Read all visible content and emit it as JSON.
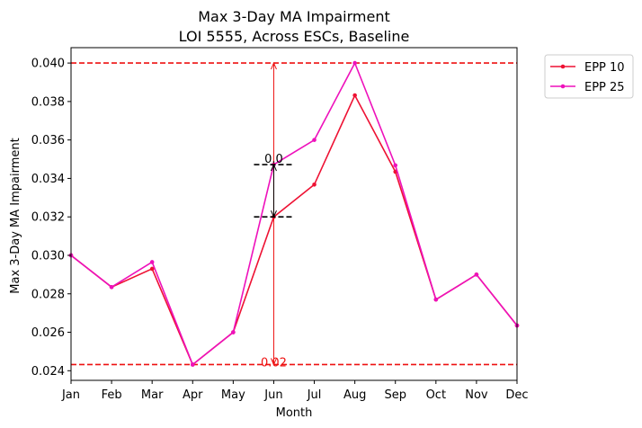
{
  "chart_data": {
    "type": "line",
    "title_line1": "Max 3-Day MA Impairment",
    "title_line2": "LOI 5555, Across ESCs, Baseline",
    "xlabel": "Month",
    "ylabel": "Max 3-Day MA Impairment",
    "categories": [
      "Jan",
      "Feb",
      "Mar",
      "Apr",
      "May",
      "Jun",
      "Jul",
      "Aug",
      "Sep",
      "Oct",
      "Nov",
      "Dec"
    ],
    "ylim": [
      0.0235,
      0.0408
    ],
    "yticks": [
      0.024,
      0.026,
      0.028,
      0.03,
      0.032,
      0.034,
      0.036,
      0.038,
      0.04
    ],
    "ytick_labels": [
      "0.024",
      "0.026",
      "0.028",
      "0.030",
      "0.032",
      "0.034",
      "0.036",
      "0.038",
      "0.040"
    ],
    "series": [
      {
        "name": "EPP 10",
        "color": "#ee1133",
        "values": [
          0.03,
          0.02835,
          0.0293,
          0.02432,
          0.026,
          0.032,
          0.03368,
          0.03832,
          0.03435,
          0.0277,
          0.029,
          0.02635
        ]
      },
      {
        "name": "EPP 25",
        "color": "#ee11bb",
        "values": [
          0.03,
          0.02835,
          0.02965,
          0.02432,
          0.026,
          0.03472,
          0.036,
          0.04,
          0.03468,
          0.0277,
          0.029,
          0.02635
        ]
      }
    ],
    "hlines": [
      {
        "y": 0.04,
        "color": "#ee1111",
        "style": "dashed"
      },
      {
        "y": 0.02432,
        "color": "#ee1111",
        "style": "dashed"
      }
    ],
    "annotations": [
      {
        "type": "range-arrow",
        "x_category": "Jun",
        "y_from": 0.02432,
        "y_to": 0.04,
        "label": "0.02",
        "color": "#ee1111"
      },
      {
        "type": "diff-arrow",
        "x_category": "Jun",
        "y_from": 0.032,
        "y_to": 0.03472,
        "label": "0.0",
        "color": "#000000"
      }
    ],
    "legend": {
      "position": "outside-top-right"
    },
    "grid": false
  }
}
